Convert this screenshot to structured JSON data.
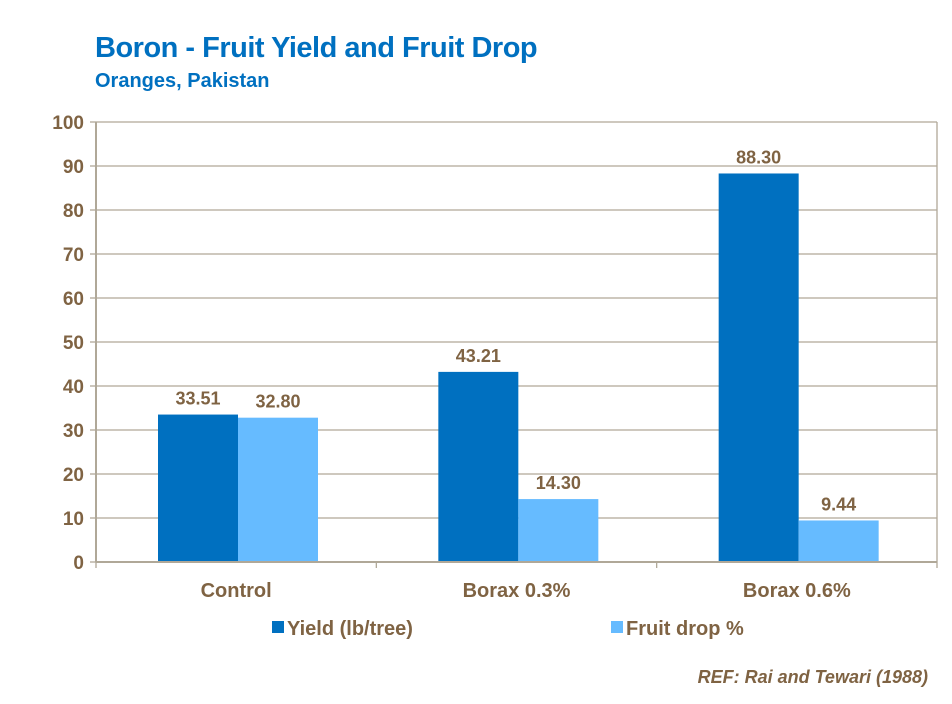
{
  "chart_data": {
    "type": "bar",
    "title": "Boron - Fruit Yield and Fruit Drop",
    "subtitle": "Oranges, Pakistan",
    "categories": [
      "Control",
      "Borax 0.3%",
      "Borax 0.6%"
    ],
    "series": [
      {
        "name": "Yield (lb/tree)",
        "values": [
          33.51,
          43.21,
          88.3
        ],
        "labels": [
          "33.51",
          "43.21",
          "88.30"
        ],
        "color": "#0070C0"
      },
      {
        "name": "Fruit drop %",
        "values": [
          32.8,
          14.3,
          9.44
        ],
        "labels": [
          "32.80",
          "14.30",
          "9.44"
        ],
        "color": "#66BBFF"
      }
    ],
    "ylim": [
      0,
      100
    ],
    "yticks": [
      0,
      10,
      20,
      30,
      40,
      50,
      60,
      70,
      80,
      90,
      100
    ],
    "grid": true,
    "legend": "bottom",
    "reference": "REF: Rai and Tewari (1988)"
  }
}
